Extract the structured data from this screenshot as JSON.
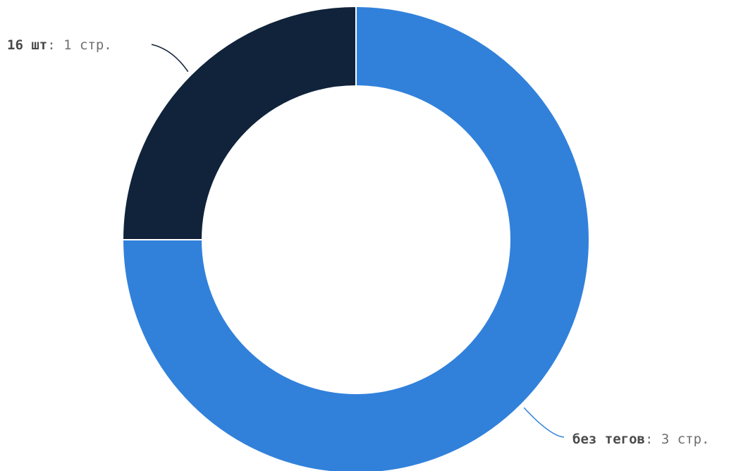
{
  "chart_data": {
    "type": "pie",
    "variant": "donut",
    "unit": "стр.",
    "slices": [
      {
        "label": "без тегов",
        "value": 3,
        "color": "#3181db"
      },
      {
        "label": "16 шт",
        "value": 1,
        "color": "#10233b"
      }
    ],
    "title": "",
    "legend": "none",
    "separator_color": "#ffffff"
  }
}
